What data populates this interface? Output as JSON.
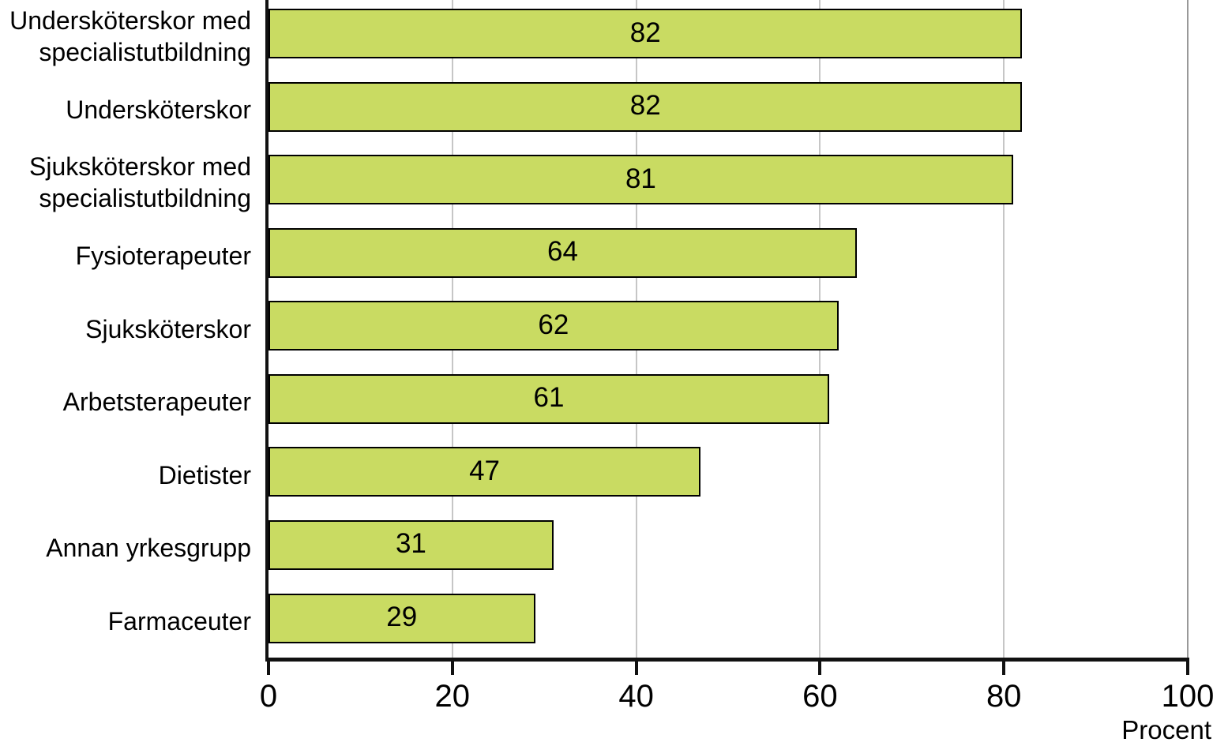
{
  "chart_data": {
    "type": "bar",
    "orientation": "horizontal",
    "categories": [
      "Undersköterskor med specialistutbildning",
      "Undersköterskor",
      "Sjuksköterskor med specialistutbildning",
      "Fysioterapeuter",
      "Sjuksköterskor",
      "Arbetsterapeuter",
      "Dietister",
      "Annan yrkesgrupp",
      "Farmaceuter"
    ],
    "values": [
      82,
      82,
      81,
      64,
      62,
      61,
      47,
      31,
      29
    ],
    "title": "",
    "xlabel": "Procent",
    "ylabel": "",
    "xlim": [
      0,
      100
    ],
    "x_ticks": [
      0,
      20,
      40,
      60,
      80,
      100
    ],
    "grid": "vertical",
    "legend": "none",
    "value_label_position": "inside-center",
    "colors": {
      "bar": "#c9db62",
      "bar_border": "#000000",
      "gridline": "#c6c6c6",
      "gridline_end": "#999999",
      "axis": "#111111",
      "text": "#000000"
    }
  }
}
